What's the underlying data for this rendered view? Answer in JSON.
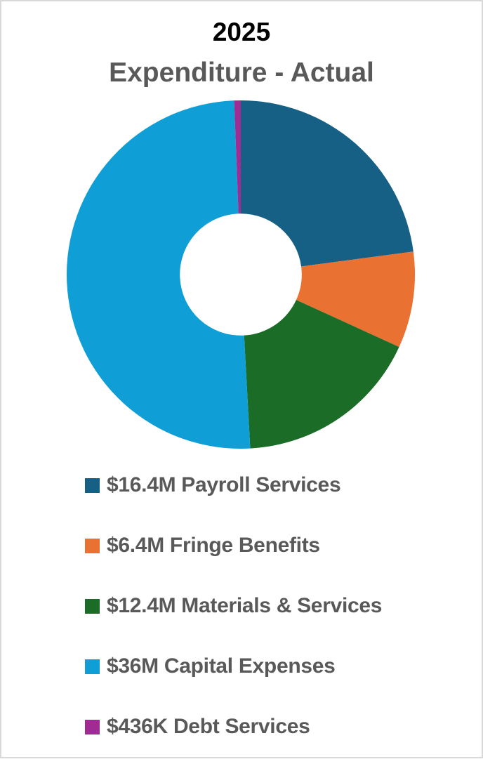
{
  "chart_data": {
    "type": "pie",
    "variant": "donut",
    "title": "2025",
    "subtitle": "Expenditure - Actual",
    "categories": [
      "Payroll Services",
      "Fringe Benefits",
      "Materials & Services",
      "Capital Expenses",
      "Debt Services"
    ],
    "values": [
      16.4,
      6.4,
      12.4,
      36.0,
      0.436
    ],
    "units": "$M",
    "value_labels": [
      "$16.4M",
      "$6.4M",
      "$12.4M",
      "$36M",
      "$436K"
    ],
    "colors": [
      "#176085",
      "#E97132",
      "#1B6C27",
      "#0F9ED5",
      "#A02B93"
    ],
    "start_angle_deg": 0,
    "direction": "clockwise",
    "hole_ratio": 0.35,
    "legend_position": "bottom",
    "legend": [
      {
        "label": "$16.4M Payroll Services",
        "color": "#176085"
      },
      {
        "label": "$6.4M Fringe Benefits",
        "color": "#E97132"
      },
      {
        "label": "$12.4M Materials & Services",
        "color": "#1B6C27"
      },
      {
        "label": "$36M Capital Expenses",
        "color": "#0F9ED5"
      },
      {
        "label": "$436K Debt Services",
        "color": "#A02B93"
      }
    ]
  }
}
